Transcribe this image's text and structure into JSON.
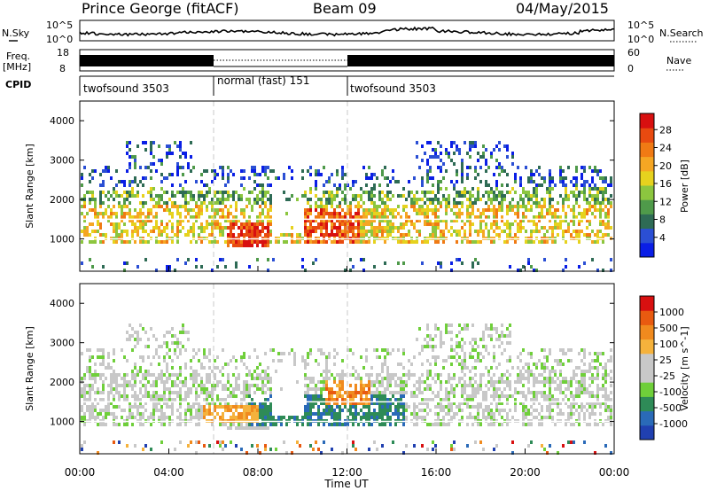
{
  "header": {
    "station": "Prince George (fitACF)",
    "beam": "Beam 09",
    "date": "04/May/2015"
  },
  "noise_panel": {
    "left_label": "N.Sky",
    "right_label": "N.Search",
    "left_ticks": [
      "10^5",
      "10^0"
    ],
    "right_ticks": [
      "10^5",
      "10^0"
    ]
  },
  "freq_panel": {
    "left_label_1": "Freq.",
    "left_label_2": "[MHz]",
    "left_ticks": [
      "18",
      "8"
    ],
    "right_label": "Nave",
    "right_ticks": [
      "60",
      "0"
    ]
  },
  "cpid": {
    "label": "CPID",
    "segments": [
      {
        "name": "twofsound 3503",
        "start": 0,
        "end": 6
      },
      {
        "name": "normal (fast) 151",
        "start": 6,
        "end": 12
      },
      {
        "name": "twofsound 3503",
        "start": 12,
        "end": 24
      }
    ]
  },
  "chart_data": [
    {
      "type": "heatmap",
      "quantity": "Power",
      "ylabel": "Slant Range [km]",
      "yticks": [
        1000,
        2000,
        3000,
        4000
      ],
      "ylim": [
        180,
        4500
      ],
      "colorbar_label": "Power [dB]",
      "colorbar_ticks": [
        "4",
        "8",
        "12",
        "16",
        "20",
        "24",
        "28"
      ],
      "colorbar_colors": [
        "#0a1ee6",
        "#2b4fd4",
        "#2e6b55",
        "#4f9a4a",
        "#8cc63f",
        "#e6d21e",
        "#f5a623",
        "#f07a14",
        "#e84a10",
        "#d81010"
      ],
      "scatter_bands": [
        {
          "start": 0.0,
          "end": 24.0,
          "r_min": 180,
          "r_max": 4400
        }
      ]
    },
    {
      "type": "heatmap",
      "quantity": "Velocity",
      "ylabel": "Slant Range [km]",
      "yticks": [
        1000,
        2000,
        3000,
        4000
      ],
      "ylim": [
        180,
        4500
      ],
      "colorbar_label": "Velocity [m s^-1]",
      "colorbar_ticks": [
        "1000",
        "500",
        "100",
        "25",
        "-25",
        "-100",
        "-500",
        "-1000"
      ],
      "colorbar_colors": [
        "#2040b0",
        "#2a6ab8",
        "#2e8b57",
        "#6fcf3a",
        "#c8c8c8",
        "#c8c8c8",
        "#f5b23c",
        "#f08a1e",
        "#e85a10",
        "#d81010"
      ]
    }
  ],
  "time_axis": {
    "label": "Time UT",
    "ticks": [
      "00:00",
      "04:00",
      "08:00",
      "12:00",
      "16:00",
      "20:00",
      "00:00"
    ],
    "range_hours": [
      0,
      24
    ]
  }
}
